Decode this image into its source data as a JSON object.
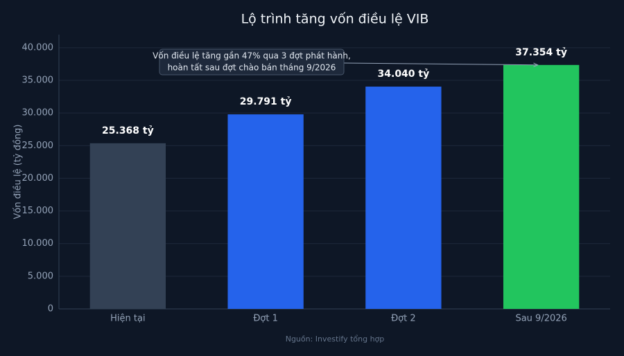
{
  "chart_data": {
    "type": "bar",
    "title": "Lộ trình tăng vốn điều lệ VIB",
    "y_label": "Vốn điều lệ (tỷ đồng)",
    "categories": [
      "Hiện tại",
      "Đợt 1",
      "Đợt 2",
      "Sau 9/2026"
    ],
    "values": [
      25368,
      29791,
      34040,
      37354
    ],
    "value_labels": [
      "25.368 tỷ",
      "29.791 tỷ",
      "34.040 tỷ",
      "37.354 tỷ"
    ],
    "colors": [
      "#334155",
      "#2563eb",
      "#2563eb",
      "#22c55e"
    ],
    "ylim": [
      0,
      42000
    ],
    "yticks": [
      0,
      {
        "value": 5000,
        "label": "5.000"
      },
      {
        "value": 10000,
        "label": "10.000"
      },
      {
        "value": 15000,
        "label": "15.000"
      },
      {
        "value": 20000,
        "label": "20.000"
      },
      {
        "value": 25000,
        "label": "25.000"
      },
      {
        "value": 30000,
        "label": "30.000"
      },
      {
        "value": 35000,
        "label": "35.000"
      },
      {
        "value": 40000,
        "label": "40.000"
      }
    ],
    "grid": true,
    "annotation": [
      "Vốn điều lệ tăng gần 47% qua 3 đợt phát hành,",
      "hoàn tất sau đợt chào bán tháng 9/2026"
    ],
    "source": "Nguồn: Investify tổng hợp"
  }
}
